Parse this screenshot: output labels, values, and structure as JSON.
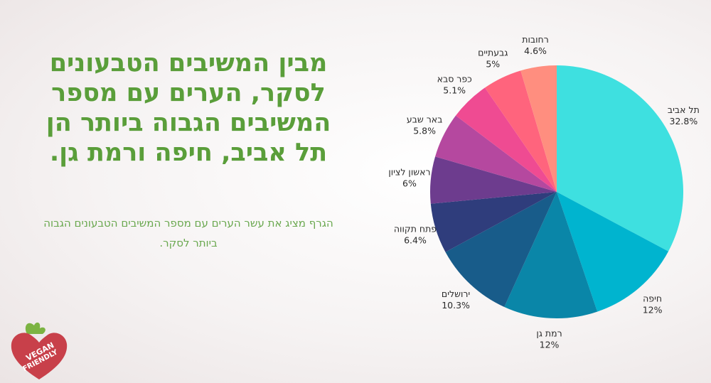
{
  "headline": "מבין המשיבים הטבעונים לסקר, הערים עם מספר המשיבים הגבוה ביותר הן תל אביב, חיפה ורמת גן.",
  "subtext": "הגרף מציג את עשר הערים עם מספר המשיבים הטבעונים הגבוה ביותר לסקר.",
  "logo": {
    "line1": "VEGAN",
    "line2": "FRIENDLY",
    "icon": "heart-leaf-icon"
  },
  "colors": {
    "headline": "#5a9e3a",
    "subtext": "#6aa84f",
    "logo": "#c8404a"
  },
  "chart_data": {
    "type": "pie",
    "start_angle_deg": 0,
    "direction": "clockwise",
    "slices": [
      {
        "label": "תל אביב",
        "value": 32.8,
        "display": "32.8%",
        "color": "#3ee0e0"
      },
      {
        "label": "חיפה",
        "value": 12,
        "display": "12%",
        "color": "#00b4cf"
      },
      {
        "label": "רמת גן",
        "value": 12,
        "display": "12%",
        "color": "#0a86a8"
      },
      {
        "label": "ירושלים",
        "value": 10.3,
        "display": "10.3%",
        "color": "#185c8a"
      },
      {
        "label": "פתח תקווה",
        "value": 6.4,
        "display": "6.4%",
        "color": "#2f3d7c"
      },
      {
        "label": "ראשון לציון",
        "value": 6,
        "display": "6%",
        "color": "#6d3c8e"
      },
      {
        "label": "באר שבע",
        "value": 5.8,
        "display": "5.8%",
        "color": "#b5489f"
      },
      {
        "label": "כפר סבא",
        "value": 5.1,
        "display": "5.1%",
        "color": "#ef4b92"
      },
      {
        "label": "גבעתיים",
        "value": 5,
        "display": "5%",
        "color": "#ff647d"
      },
      {
        "label": "רחובות",
        "value": 4.6,
        "display": "4.6%",
        "color": "#ff8e7f"
      }
    ]
  }
}
